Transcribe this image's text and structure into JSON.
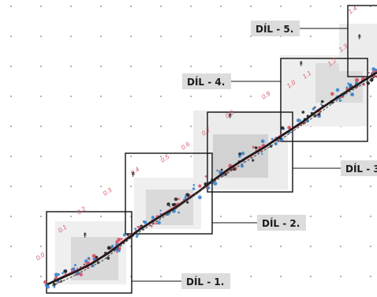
{
  "sections": [
    {
      "label": "DÍL - 1."
    },
    {
      "label": "DÍL - 2."
    },
    {
      "label": "DÍL - 3."
    },
    {
      "label": "DÍL - 4."
    },
    {
      "label": "DÍL - 5."
    }
  ],
  "chainage_marks": [
    "0.0",
    "0.1",
    "0.2",
    "0.3",
    "0.4",
    "0.5",
    "0.6",
    "0.7",
    "0.8",
    "0.9",
    "1.0",
    "1.1",
    "1.2",
    "1.3",
    "1.4"
  ],
  "colors": {
    "section_frame": "#111111",
    "label_background": "#dcdcdc",
    "route_primary": "#1b1b1b",
    "route_secondary": "#d4465a",
    "survey_points": "#2f7fd0",
    "chainage_text": "#d45a6a",
    "grid_dots": "#9a9a9a"
  }
}
